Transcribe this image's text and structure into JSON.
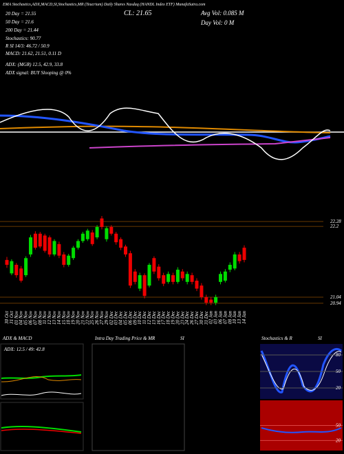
{
  "chart_data": {
    "type": "candlestick",
    "header": "EMA Stochastics,ADX,MACD,SI,Stochastics,MR (Teucrium) Daily Shares Nasdaq (HANDL Index ETF) MunafaSutra.com",
    "ema_20": "20 Day = 21.55",
    "ema_50": "50 Day = 21.6",
    "ema_200": "200 Day = 21.44",
    "close_label": "CL: 21.65",
    "avg_vol": "Avg Vol: 0.085 M",
    "day_vol": "Day Vol: 0   M",
    "stochastics": "Stochastics: 90.77",
    "si": "R               SI 14/3: 46.72 / 50.9",
    "macd": "MACD: 21.62, 21.51, 0.11 D",
    "adx": "ADX:                    (MGR) 12.5, 42.9, 33.8",
    "adx_signal": "ADX  signal:                         BUY Slooping @ 0%",
    "categories": [
      "30 Oct",
      "31 Oct",
      "01 Nov",
      "04 Nov",
      "05 Nov",
      "06 Nov",
      "07 Nov",
      "08 Nov",
      "11 Nov",
      "12 Nov",
      "13 Nov",
      "14 Nov",
      "15 Nov",
      "18 Nov",
      "19 Nov",
      "20 Nov",
      "21 Nov",
      "22 Nov",
      "25 Nov",
      "26 Nov",
      "27 Nov",
      "29 Nov",
      "02 Dec",
      "03 Dec",
      "04 Dec",
      "05 Dec",
      "06 Dec",
      "09 Dec",
      "10 Dec",
      "11 Dec",
      "12 Dec",
      "13 Dec",
      "16 Dec",
      "17 Dec",
      "18 Dec",
      "19 Dec",
      "20 Dec",
      "23 Dec",
      "24 Dec",
      "26 Dec",
      "27 Dec",
      "30 Dec",
      "31 Dec",
      "02 Jan",
      "03 Jan",
      "06 Jan",
      "07 Jan",
      "08 Jan",
      "10 Jan",
      "13 Jan",
      "14 Jan"
    ],
    "open": [
      21.65,
      21.43,
      21.57,
      21.51,
      21.4,
      21.74,
      22.08,
      22.08,
      22.05,
      22.02,
      21.74,
      21.91,
      21.74,
      21.57,
      21.68,
      21.85,
      21.96,
      21.99,
      22.1,
      22.02,
      22.33,
      21.99,
      22.19,
      22.08,
      21.99,
      21.87,
      21.76,
      21.46,
      21.18,
      21.4,
      21.23,
      21.68,
      21.54,
      21.4,
      21.29,
      21.4,
      21.29,
      21.46,
      21.29,
      21.4,
      21.31,
      21.23,
      21.04,
      21.0,
      20.95,
      21.29,
      21.31,
      21.49,
      21.51,
      21.74,
      21.85
    ],
    "high": [
      21.7,
      21.66,
      21.6,
      21.55,
      21.71,
      22.06,
      22.12,
      22.11,
      22.08,
      22.05,
      21.99,
      21.95,
      21.78,
      21.75,
      21.88,
      21.99,
      22.11,
      22.16,
      22.14,
      22.22,
      22.37,
      22.2,
      22.22,
      22.11,
      22.02,
      21.9,
      21.8,
      21.5,
      21.44,
      21.43,
      21.6,
      21.71,
      21.58,
      21.44,
      21.46,
      21.44,
      21.53,
      21.5,
      21.46,
      21.44,
      21.35,
      21.27,
      21.08,
      21.04,
      21.08,
      21.46,
      21.5,
      21.61,
      21.78,
      21.78,
      21.89
    ],
    "low": [
      21.52,
      21.4,
      21.36,
      21.28,
      21.37,
      21.7,
      21.82,
      21.84,
      21.77,
      21.7,
      21.71,
      21.68,
      21.53,
      21.54,
      21.65,
      21.82,
      21.93,
      21.96,
      21.88,
      21.99,
      22.15,
      21.95,
      22.05,
      21.9,
      21.81,
      21.7,
      21.19,
      21.25,
      21.14,
      21.02,
      21.2,
      21.42,
      21.31,
      21.22,
      21.26,
      21.25,
      21.26,
      21.31,
      21.25,
      21.25,
      21.14,
      21.0,
      20.91,
      20.91,
      20.91,
      21.25,
      21.28,
      21.45,
      21.48,
      21.59,
      21.61
    ],
    "close": [
      21.57,
      21.63,
      21.4,
      21.31,
      21.68,
      22.02,
      21.85,
      21.87,
      21.8,
      21.74,
      21.96,
      21.72,
      21.57,
      21.72,
      21.85,
      21.96,
      22.08,
      22.13,
      21.91,
      22.19,
      22.19,
      22.17,
      22.08,
      21.94,
      21.85,
      21.74,
      21.23,
      21.29,
      21.4,
      21.06,
      21.57,
      21.46,
      21.35,
      21.26,
      21.42,
      21.29,
      21.49,
      21.35,
      21.42,
      21.29,
      21.18,
      21.04,
      20.95,
      20.95,
      21.04,
      21.42,
      21.46,
      21.57,
      21.74,
      21.63,
      21.65
    ],
    "up_color": "#00dd00",
    "down_color": "#ee0000",
    "yticks": [
      22.28,
      {
        "value": 22.2,
        "label": "22.2"
      },
      21.04,
      20.94
    ],
    "panels": {
      "adx_title": "ADX  & MACD",
      "intraday_title": "Intra Day Trading Price  & MR",
      "si_title": "SI",
      "stoch_title": "Stochastics & R",
      "si2_title": "SI",
      "adx_value": "ADX: 12.5 / 49: 42.8",
      "stoch_ticks": [
        80,
        50,
        20
      ],
      "si_ticks": [
        50,
        20
      ]
    }
  }
}
